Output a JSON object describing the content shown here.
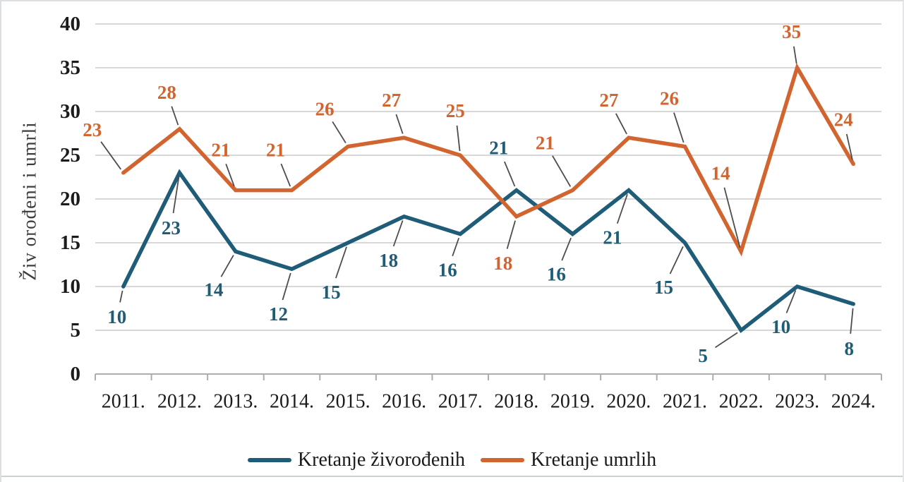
{
  "figure": {
    "background_color": "#ffffff",
    "border_color": "#dcdfe1",
    "bottom_rule_color": "#ccd1d4"
  },
  "chart_data": {
    "type": "line",
    "title": "",
    "xlabel": "",
    "ylabel": "Živ orođeni i umrli",
    "categories": [
      "2011.",
      "2012.",
      "2013.",
      "2014.",
      "2015.",
      "2016.",
      "2017.",
      "2018.",
      "2019.",
      "2020.",
      "2021.",
      "2022.",
      "2023.",
      "2024."
    ],
    "series": [
      {
        "name": "Kretanje živorođenih",
        "color": "#1E5C78",
        "values": [
          10,
          23,
          14,
          12,
          15,
          18,
          16,
          21,
          16,
          21,
          15,
          5,
          10,
          8
        ]
      },
      {
        "name": "Kretanje umrlih",
        "color": "#D2652F",
        "values": [
          23,
          28,
          21,
          21,
          26,
          27,
          25,
          18,
          21,
          27,
          26,
          14,
          35,
          24
        ]
      }
    ],
    "ylim": [
      0,
      40
    ],
    "yticks": [
      0,
      5,
      10,
      15,
      20,
      25,
      30,
      35,
      40
    ],
    "grid": true,
    "data_labels": true,
    "legend_position": "bottom",
    "gridline_color": "#d8d8d8",
    "axis_color": "#adadad",
    "tick_label_color": "#1b1b1b",
    "leader_line_color": "#4d4d4d"
  }
}
